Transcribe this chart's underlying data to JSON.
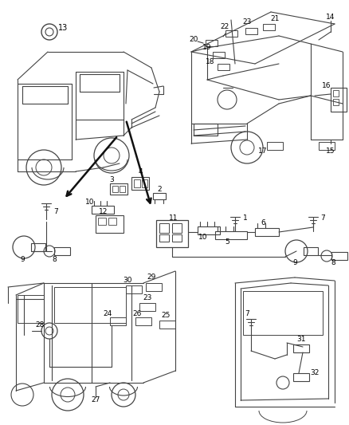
{
  "bg_color": "#ffffff",
  "line_color": "#444444",
  "text_color": "#000000",
  "fig_width": 4.38,
  "fig_height": 5.33,
  "dpi": 100
}
